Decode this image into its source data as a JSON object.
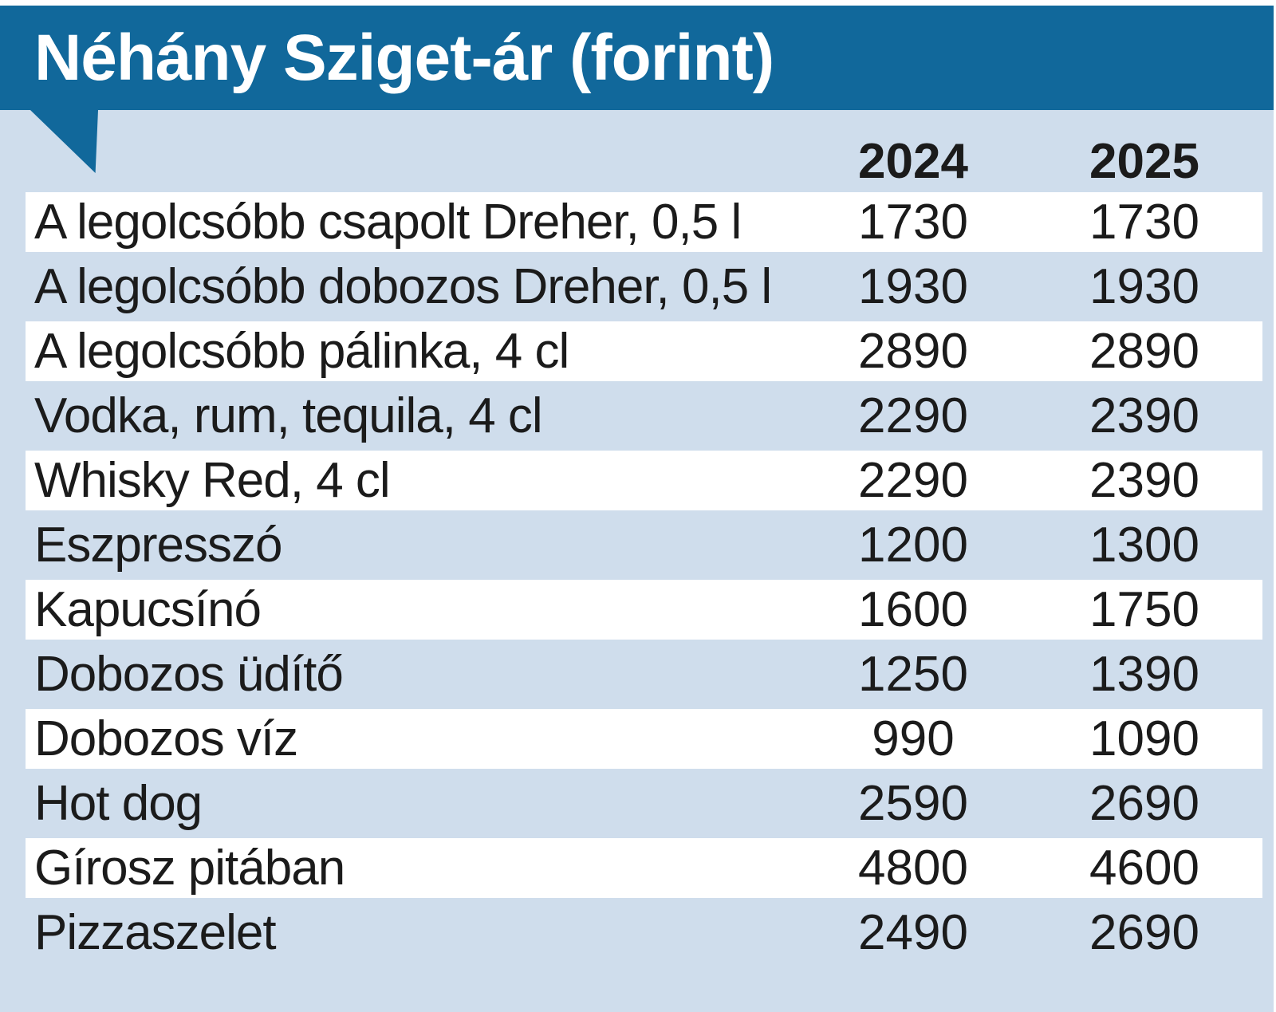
{
  "title": "Néhány Sziget-ár (forint)",
  "columns": [
    "2024",
    "2025"
  ],
  "unit": "forint",
  "colors": {
    "header_bg": "#11689b",
    "panel_bg": "#cfddec",
    "row_band": "#ffffff",
    "text": "#1b1b1b",
    "title_text": "#ffffff"
  },
  "rows": [
    {
      "label": "A legolcsóbb csapolt Dreher, 0,5 l",
      "v2024": "1730",
      "v2025": "1730"
    },
    {
      "label": "A legolcsóbb dobozos Dreher, 0,5 l",
      "v2024": "1930",
      "v2025": "1930"
    },
    {
      "label": "A legolcsóbb pálinka, 4 cl",
      "v2024": "2890",
      "v2025": "2890"
    },
    {
      "label": "Vodka, rum, tequila, 4 cl",
      "v2024": "2290",
      "v2025": "2390"
    },
    {
      "label": "Whisky Red, 4 cl",
      "v2024": "2290",
      "v2025": "2390"
    },
    {
      "label": "Eszpresszó",
      "v2024": "1200",
      "v2025": "1300"
    },
    {
      "label": "Kapucsínó",
      "v2024": "1600",
      "v2025": "1750"
    },
    {
      "label": "Dobozos üdítő",
      "v2024": "1250",
      "v2025": "1390"
    },
    {
      "label": "Dobozos víz",
      "v2024": "990",
      "v2025": "1090"
    },
    {
      "label": "Hot dog",
      "v2024": "2590",
      "v2025": "2690"
    },
    {
      "label": "Gírosz pitában",
      "v2024": "4800",
      "v2025": "4600"
    },
    {
      "label": "Pizzaszelet",
      "v2024": "2490",
      "v2025": "2690"
    }
  ],
  "chart_data": {
    "type": "table",
    "title": "Néhány Sziget-ár (forint)",
    "columns": [
      "2024",
      "2025"
    ],
    "categories": [
      "A legolcsóbb csapolt Dreher, 0,5 l",
      "A legolcsóbb dobozos Dreher, 0,5 l",
      "A legolcsóbb pálinka, 4 cl",
      "Vodka, rum, tequila, 4 cl",
      "Whisky Red, 4 cl",
      "Eszpresszó",
      "Kapucsínó",
      "Dobozos üdítő",
      "Dobozos víz",
      "Hot dog",
      "Gírosz pitában",
      "Pizzaszelet"
    ],
    "series": [
      {
        "name": "2024",
        "values": [
          1730,
          1930,
          2890,
          2290,
          2290,
          1200,
          1600,
          1250,
          990,
          2590,
          4800,
          2490
        ]
      },
      {
        "name": "2025",
        "values": [
          1730,
          1930,
          2890,
          2390,
          2390,
          1300,
          1750,
          1390,
          1090,
          2690,
          4600,
          2690
        ]
      }
    ],
    "unit": "forint"
  }
}
